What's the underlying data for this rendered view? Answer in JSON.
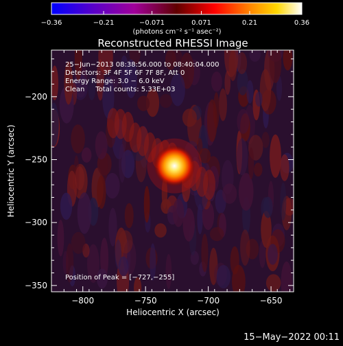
{
  "chart_data": {
    "type": "heatmap",
    "title": "Reconstructed RHESSI Image",
    "xlabel": "Heliocentric X (arcsec)",
    "ylabel": "Heliocentric Y (arcsec)",
    "xlim": [
      -825,
      -632
    ],
    "ylim": [
      -355,
      -163
    ],
    "xticks": [
      -800,
      -750,
      -700,
      -650
    ],
    "yticks": [
      -200,
      -250,
      -300,
      -350
    ],
    "xtick_labels": [
      "−800",
      "−750",
      "−700",
      "−650"
    ],
    "ytick_labels": [
      "−200",
      "−250",
      "−300",
      "−350"
    ],
    "peak": {
      "x": -727,
      "y": -255,
      "value": 0.36
    },
    "colorbar": {
      "min": -0.36,
      "max": 0.36,
      "ticks": [
        -0.36,
        -0.21,
        -0.071,
        0.071,
        0.21,
        0.36
      ],
      "tick_labels": [
        "−0.36",
        "−0.21",
        "−0.071",
        "0.071",
        "0.21",
        "0.36"
      ],
      "unit_label": "(photons cm⁻² s⁻¹ asec⁻²)",
      "colors": [
        "#0000ff",
        "#5a00c8",
        "#a0009a",
        "#ff0000",
        "#ff8c00",
        "#ffd700",
        "#ffffff"
      ]
    },
    "annotations": [
      "25−Jun−2013 08:38:56.000 to 08:40:04.000",
      "Detectors: 3F 4F 5F 6F 7F 8F, Att 0",
      "Energy Range: 3.0 − 6.0 keV",
      "Clean     Total counts: 5.33E+03"
    ],
    "peak_label": "Position of Peak = [−727,−255]"
  },
  "footer": {
    "date": "15−May−2022 00:11"
  }
}
